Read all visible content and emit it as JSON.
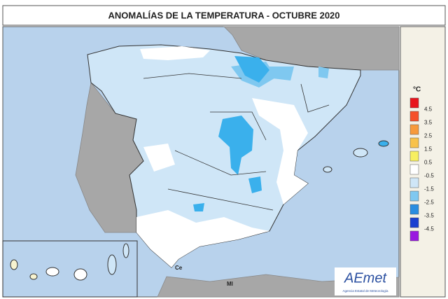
{
  "title": "ANOMALÍAS DE LA TEMPERATURA - OCTUBRE 2020",
  "labels": {
    "ceuta": "Ce",
    "melilla": "Ml"
  },
  "logo": {
    "name": "AEmet",
    "subtitle": "Agencia Estatal de Meteorología"
  },
  "legend": {
    "unit": "°C",
    "ticks": [
      4.5,
      3.5,
      2.5,
      1.5,
      0.5,
      -0.5,
      -1.5,
      -2.5,
      -3.5,
      -4.5
    ],
    "colors": [
      "#e8141c",
      "#f5502a",
      "#f79a3c",
      "#f8c24a",
      "#f7ef60",
      "#ffffff",
      "#cfe6f7",
      "#7fc8f0",
      "#2a8de0",
      "#1a40d0",
      "#9a18e0"
    ]
  }
}
